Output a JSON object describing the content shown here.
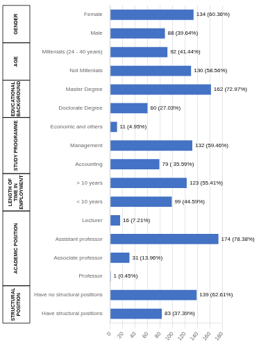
{
  "chart_data": {
    "type": "bar",
    "orientation": "horizontal",
    "categories": [
      "Female",
      "Male",
      "Millenials (24 - 40 years)",
      "Not Millenials",
      "Master Degree",
      "Doctorate Degree",
      "Economic and others",
      "Management",
      "Accounting",
      "> 10 years",
      "< 10 years",
      "Lecturer",
      "Assistant professor",
      "Associate professor",
      "Professor",
      "Have no structural positions",
      "Have structural positions"
    ],
    "values": [
      134,
      88,
      92,
      130,
      162,
      60,
      11,
      132,
      79,
      123,
      99,
      16,
      174,
      31,
      1,
      139,
      83
    ],
    "data_labels": true,
    "value_labels": [
      "134 (60.36%)",
      "88 (39.64%)",
      "92 (41.44%)",
      "130 (58.56%)",
      "162 (72.97%)",
      "60 (27.03%)",
      "11 (4.95%)",
      "132 (59.46%)",
      "79 ( 35.59%)",
      "123 (55.41%)",
      "99 (44.59%)",
      "16 (7.21%)",
      "174 (78.38%)",
      "31 (13.96%)",
      "1 (0.45%)",
      "139 (62.61%)",
      "83 (37.39%)"
    ],
    "color": "#4472C4",
    "xlim": [
      0,
      180
    ],
    "xticks": [
      0,
      20,
      40,
      60,
      80,
      100,
      120,
      140,
      160,
      180
    ],
    "grid": true,
    "annotations": [
      {
        "text": "GENDER",
        "categories": [
          "Female",
          "Male"
        ]
      },
      {
        "text": "AGE",
        "categories": [
          "Millenials (24 - 40 years)",
          "Not Millenials"
        ]
      },
      {
        "text": "EDUCATIONAL\nBACKGROUND",
        "categories": [
          "Master Degree",
          "Doctorate Degree"
        ]
      },
      {
        "text": "STUDY PROGRAMME",
        "categories": [
          "Economic and others",
          "Management",
          "Accounting"
        ]
      },
      {
        "text": "LENGTH OF\nTIME IN\nEMPLOYMENT",
        "categories": [
          "> 10 years",
          "< 10 years"
        ]
      },
      {
        "text": "ACADEMIC POSITION",
        "categories": [
          "Lecturer",
          "Assistant professor",
          "Associate professor",
          "Professor"
        ]
      },
      {
        "text": "STRUCTURAL\nPOSITION",
        "categories": [
          "Have no structural positions",
          "Have structural positions"
        ]
      }
    ]
  }
}
